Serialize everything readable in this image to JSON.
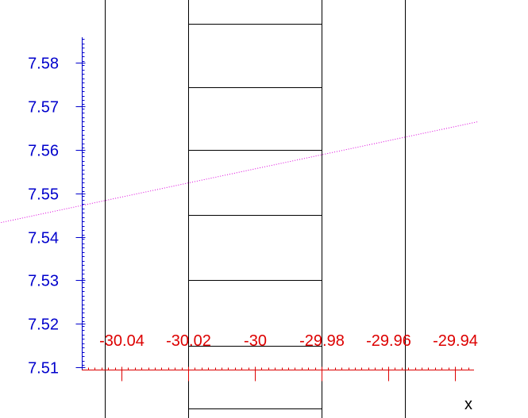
{
  "chart_data": {
    "type": "line",
    "title": "",
    "xlabel": "x",
    "ylabel": "",
    "xlim": [
      -30.05,
      -29.933
    ],
    "ylim": [
      7.5095,
      7.5855
    ],
    "x_ticks": [
      "-30.04",
      "-30.02",
      "-30",
      "-29.98",
      "-29.96",
      "-29.94"
    ],
    "y_ticks": [
      "7.51",
      "7.52",
      "7.53",
      "7.54",
      "7.55",
      "7.56",
      "7.57",
      "7.58"
    ],
    "series": [
      {
        "style": "dotted",
        "color": "#dd00dd",
        "points": [
          [
            -30.081,
            7.5425
          ],
          [
            -29.933,
            7.5665
          ]
        ]
      }
    ],
    "vertical_lines": [
      -30.045,
      -30.02,
      -29.98,
      -29.955
    ],
    "segments": [
      {
        "x1": -30.02,
        "x2": -29.98,
        "y": 7.589
      },
      {
        "x1": -30.02,
        "x2": -29.98,
        "y": 7.5745
      },
      {
        "x1": -30.02,
        "x2": -29.98,
        "y": 7.56
      },
      {
        "x1": -30.02,
        "x2": -29.98,
        "y": 7.545
      },
      {
        "x1": -30.02,
        "x2": -29.98,
        "y": 7.53
      },
      {
        "x1": -30.02,
        "x2": -29.98,
        "y": 7.515
      },
      {
        "x1": -30.02,
        "x2": -29.98,
        "y": 7.5005
      }
    ],
    "grid": false,
    "colors": {
      "y_tick_labels": "#0000cc",
      "x_tick_labels": "#dd0000",
      "axes": "#0000cc",
      "x_axis_ticks": "#dd0000",
      "lines": "#000000"
    }
  }
}
